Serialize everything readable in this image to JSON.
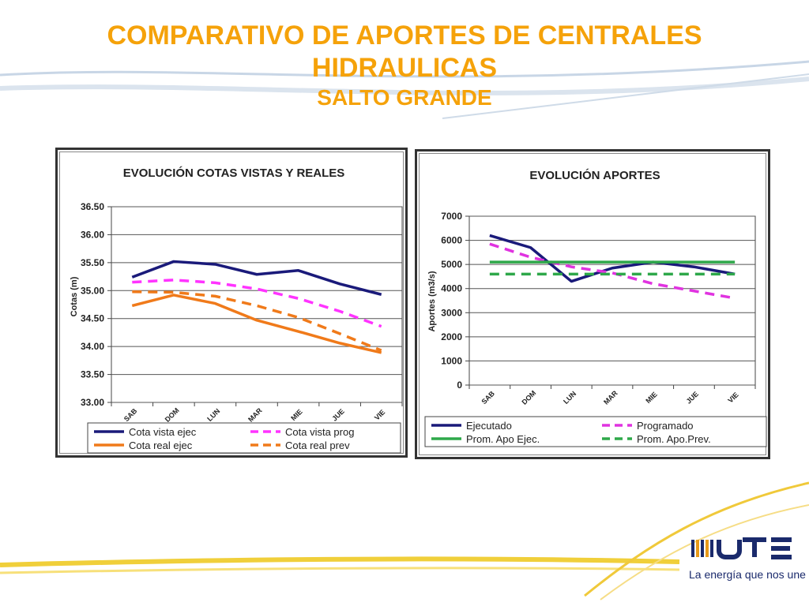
{
  "slide": {
    "title_line1": "COMPARATIVO DE APORTES DE CENTRALES",
    "title_line2": "HIDRAULICAS",
    "title_line3": "SALTO GRANDE",
    "title_color": "#f5a20a"
  },
  "brand": {
    "logo_text": "UTE",
    "tagline": "La energía que nos une"
  },
  "chart_data": [
    {
      "type": "line",
      "title": "EVOLUCIÓN  COTAS VISTAS Y REALES",
      "ylabel": "Cotas (m)",
      "xlabel": "",
      "categories": [
        "SAB",
        "DOM",
        "LUN",
        "MAR",
        "MIE",
        "JUE",
        "VIE"
      ],
      "yticks": [
        "36.50",
        "36.00",
        "35.50",
        "35.00",
        "34.50",
        "34.00",
        "33.50",
        "33.00"
      ],
      "ylim": [
        33.0,
        36.5
      ],
      "grid": true,
      "legend_position": "bottom",
      "series": [
        {
          "name": "Cota vista ejec",
          "color": "#1a1a7a",
          "dash": false,
          "values": [
            35.24,
            35.52,
            35.47,
            35.29,
            35.36,
            35.12,
            34.93
          ]
        },
        {
          "name": "Cota vista prog",
          "color": "#ff33ff",
          "dash": true,
          "values": [
            35.15,
            35.19,
            35.14,
            35.03,
            34.86,
            34.63,
            34.36
          ]
        },
        {
          "name": "Cota real ejec",
          "color": "#f07a1a",
          "dash": false,
          "values": [
            34.73,
            34.92,
            34.77,
            34.47,
            34.27,
            34.06,
            33.89
          ]
        },
        {
          "name": "Cota real prev",
          "color": "#f07a1a",
          "dash": true,
          "values": [
            34.98,
            34.97,
            34.9,
            34.73,
            34.52,
            34.23,
            33.93
          ]
        }
      ]
    },
    {
      "type": "line",
      "title": "EVOLUCIÓN  APORTES",
      "ylabel": "Aportes (m3/s)",
      "xlabel": "",
      "categories": [
        "SAB",
        "DOM",
        "LUN",
        "MAR",
        "MIE",
        "JUE",
        "VIE"
      ],
      "yticks": [
        "7000",
        "6000",
        "5000",
        "4000",
        "3000",
        "2000",
        "1000",
        "0"
      ],
      "ylim": [
        0,
        7000
      ],
      "grid": true,
      "legend_position": "bottom",
      "series": [
        {
          "name": "Ejecutado",
          "color": "#1a1a7a",
          "dash": false,
          "values": [
            6200,
            5700,
            4300,
            4850,
            5100,
            4900,
            4600
          ]
        },
        {
          "name": "Programado",
          "color": "#e033e0",
          "dash": true,
          "values": [
            5850,
            5300,
            4900,
            4650,
            4200,
            3900,
            3600
          ]
        },
        {
          "name": "Prom. Apo Ejec.",
          "color": "#2ea84a",
          "dash": false,
          "values": [
            5100,
            5100,
            5100,
            5100,
            5100,
            5100,
            5100
          ]
        },
        {
          "name": "Prom. Apo.Prev.",
          "color": "#2ea84a",
          "dash": true,
          "values": [
            4600,
            4600,
            4600,
            4600,
            4600,
            4600,
            4600
          ]
        }
      ]
    }
  ]
}
